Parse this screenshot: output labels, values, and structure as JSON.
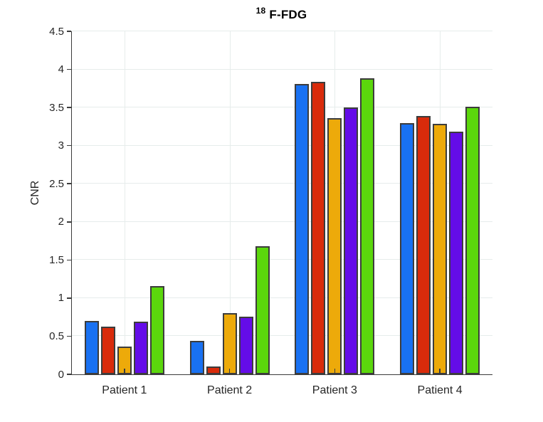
{
  "figure": {
    "title_superscript": "18",
    "title_main": "F-FDG",
    "ylabel": "CNR"
  },
  "chart_data": {
    "type": "bar",
    "title": "18 F-FDG",
    "title_superscript": "18",
    "title_main": "F-FDG",
    "xlabel": "",
    "ylabel": "CNR",
    "categories": [
      "Patient 1",
      "Patient 2",
      "Patient 3",
      "Patient 4"
    ],
    "series": [
      {
        "name": "",
        "color": "#1971f2",
        "values": [
          0.7,
          0.44,
          3.81,
          3.3
        ]
      },
      {
        "name": "",
        "color": "#d92b0b",
        "values": [
          0.63,
          0.1,
          3.84,
          3.39
        ]
      },
      {
        "name": "",
        "color": "#edaa0a",
        "values": [
          0.36,
          0.8,
          3.36,
          3.29
        ]
      },
      {
        "name": "",
        "color": "#640ce8",
        "values": [
          0.69,
          0.76,
          3.5,
          3.18
        ]
      },
      {
        "name": "",
        "color": "#5bd70c",
        "values": [
          1.16,
          1.68,
          3.88,
          3.51
        ]
      }
    ],
    "ylim": [
      0,
      4.5
    ],
    "ytick_labels": [
      "0",
      "0.5",
      "1",
      "1.5",
      "2",
      "2.5",
      "3",
      "3.5",
      "4",
      "4.5"
    ],
    "grid": true,
    "legend": false,
    "colors": {
      "axis": "#3b3b3b",
      "grid": "#e6eceb",
      "bar_edge": "#3c3c3c",
      "tick_label": "#262626"
    }
  }
}
